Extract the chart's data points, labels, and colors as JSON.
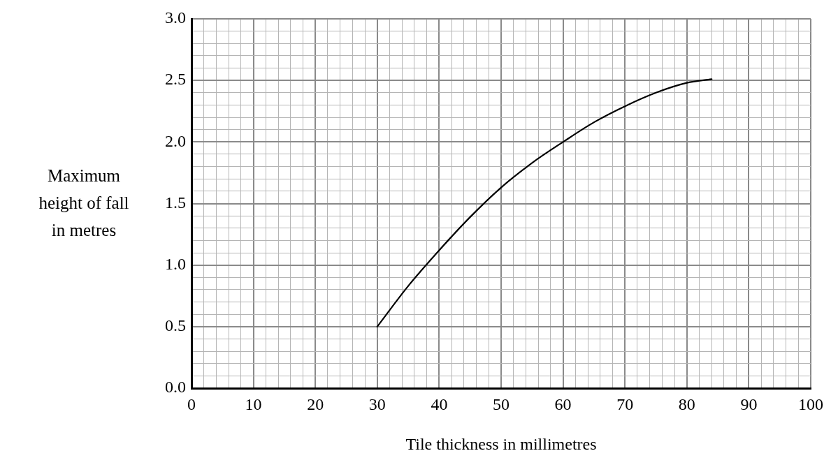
{
  "chart_data": {
    "type": "line",
    "xlabel": "Tile thickness in millimetres",
    "ylabel": "Maximum height of fall in metres",
    "series": [
      {
        "color": "#000000",
        "x": [
          30,
          35,
          40,
          45,
          50,
          55,
          60,
          65,
          70,
          75,
          80,
          84
        ],
        "values": [
          0.5,
          0.83,
          1.12,
          1.39,
          1.63,
          1.83,
          2.0,
          2.16,
          2.29,
          2.4,
          2.48,
          2.51
        ]
      }
    ],
    "xlim": [
      0,
      100
    ],
    "xticks": [
      0,
      {
        "value": 2,
        "label": null
      },
      {
        "value": 4,
        "label": null
      },
      {
        "value": 6,
        "label": null
      },
      {
        "value": 8,
        "label": null
      },
      10,
      {
        "value": 12,
        "label": null
      },
      {
        "value": 14,
        "label": null
      },
      {
        "value": 16,
        "label": null
      },
      {
        "value": 18,
        "label": null
      },
      20,
      {
        "value": 22,
        "label": null
      },
      {
        "value": 24,
        "label": null
      },
      {
        "value": 26,
        "label": null
      },
      {
        "value": 28,
        "label": null
      },
      30,
      {
        "value": 32,
        "label": null
      },
      {
        "value": 34,
        "label": null
      },
      {
        "value": 36,
        "label": null
      },
      {
        "value": 38,
        "label": null
      },
      40,
      {
        "value": 42,
        "label": null
      },
      {
        "value": 44,
        "label": null
      },
      {
        "value": 46,
        "label": null
      },
      {
        "value": 48,
        "label": null
      },
      50,
      {
        "value": 52,
        "label": null
      },
      {
        "value": 54,
        "label": null
      },
      {
        "value": 56,
        "label": null
      },
      {
        "value": 58,
        "label": null
      },
      60,
      {
        "value": 62,
        "label": null
      },
      {
        "value": 64,
        "label": null
      },
      {
        "value": 66,
        "label": null
      },
      {
        "value": 68,
        "label": null
      },
      70,
      {
        "value": 72,
        "label": null
      },
      {
        "value": 74,
        "label": null
      },
      {
        "value": 76,
        "label": null
      },
      {
        "value": 78,
        "label": null
      },
      80,
      {
        "value": 82,
        "label": null
      },
      {
        "value": 84,
        "label": null
      },
      {
        "value": 86,
        "label": null
      },
      {
        "value": 88,
        "label": null
      },
      90,
      {
        "value": 92,
        "label": null
      },
      {
        "value": 94,
        "label": null
      },
      {
        "value": 96,
        "label": null
      },
      {
        "value": 98,
        "label": null
      },
      100
    ],
    "ylim": [
      0,
      3
    ],
    "yticks": [
      {
        "value": 0,
        "label": "0.0"
      },
      {
        "value": 0.1,
        "label": null
      },
      {
        "value": 0.2,
        "label": null
      },
      {
        "value": 0.3,
        "label": null
      },
      {
        "value": 0.4,
        "label": null
      },
      {
        "value": 0.5,
        "label": "0.5"
      },
      {
        "value": 0.6,
        "label": null
      },
      {
        "value": 0.7,
        "label": null
      },
      {
        "value": 0.8,
        "label": null
      },
      {
        "value": 0.9,
        "label": null
      },
      {
        "value": 1,
        "label": "1.0"
      },
      {
        "value": 1.1,
        "label": null
      },
      {
        "value": 1.2,
        "label": null
      },
      {
        "value": 1.3,
        "label": null
      },
      {
        "value": 1.4,
        "label": null
      },
      {
        "value": 1.5,
        "label": "1.5"
      },
      {
        "value": 1.6,
        "label": null
      },
      {
        "value": 1.7,
        "label": null
      },
      {
        "value": 1.8,
        "label": null
      },
      {
        "value": 1.9,
        "label": null
      },
      {
        "value": 2,
        "label": "2.0"
      },
      {
        "value": 2.1,
        "label": null
      },
      {
        "value": 2.2,
        "label": null
      },
      {
        "value": 2.3,
        "label": null
      },
      {
        "value": 2.4,
        "label": null
      },
      {
        "value": 2.5,
        "label": "2.5"
      },
      {
        "value": 2.6,
        "label": null
      },
      {
        "value": 2.7,
        "label": null
      },
      {
        "value": 2.8,
        "label": null
      },
      {
        "value": 2.9,
        "label": null
      },
      {
        "value": 3,
        "label": "3.0"
      }
    ],
    "grid": true,
    "marker": "none",
    "line_style": "solid"
  }
}
